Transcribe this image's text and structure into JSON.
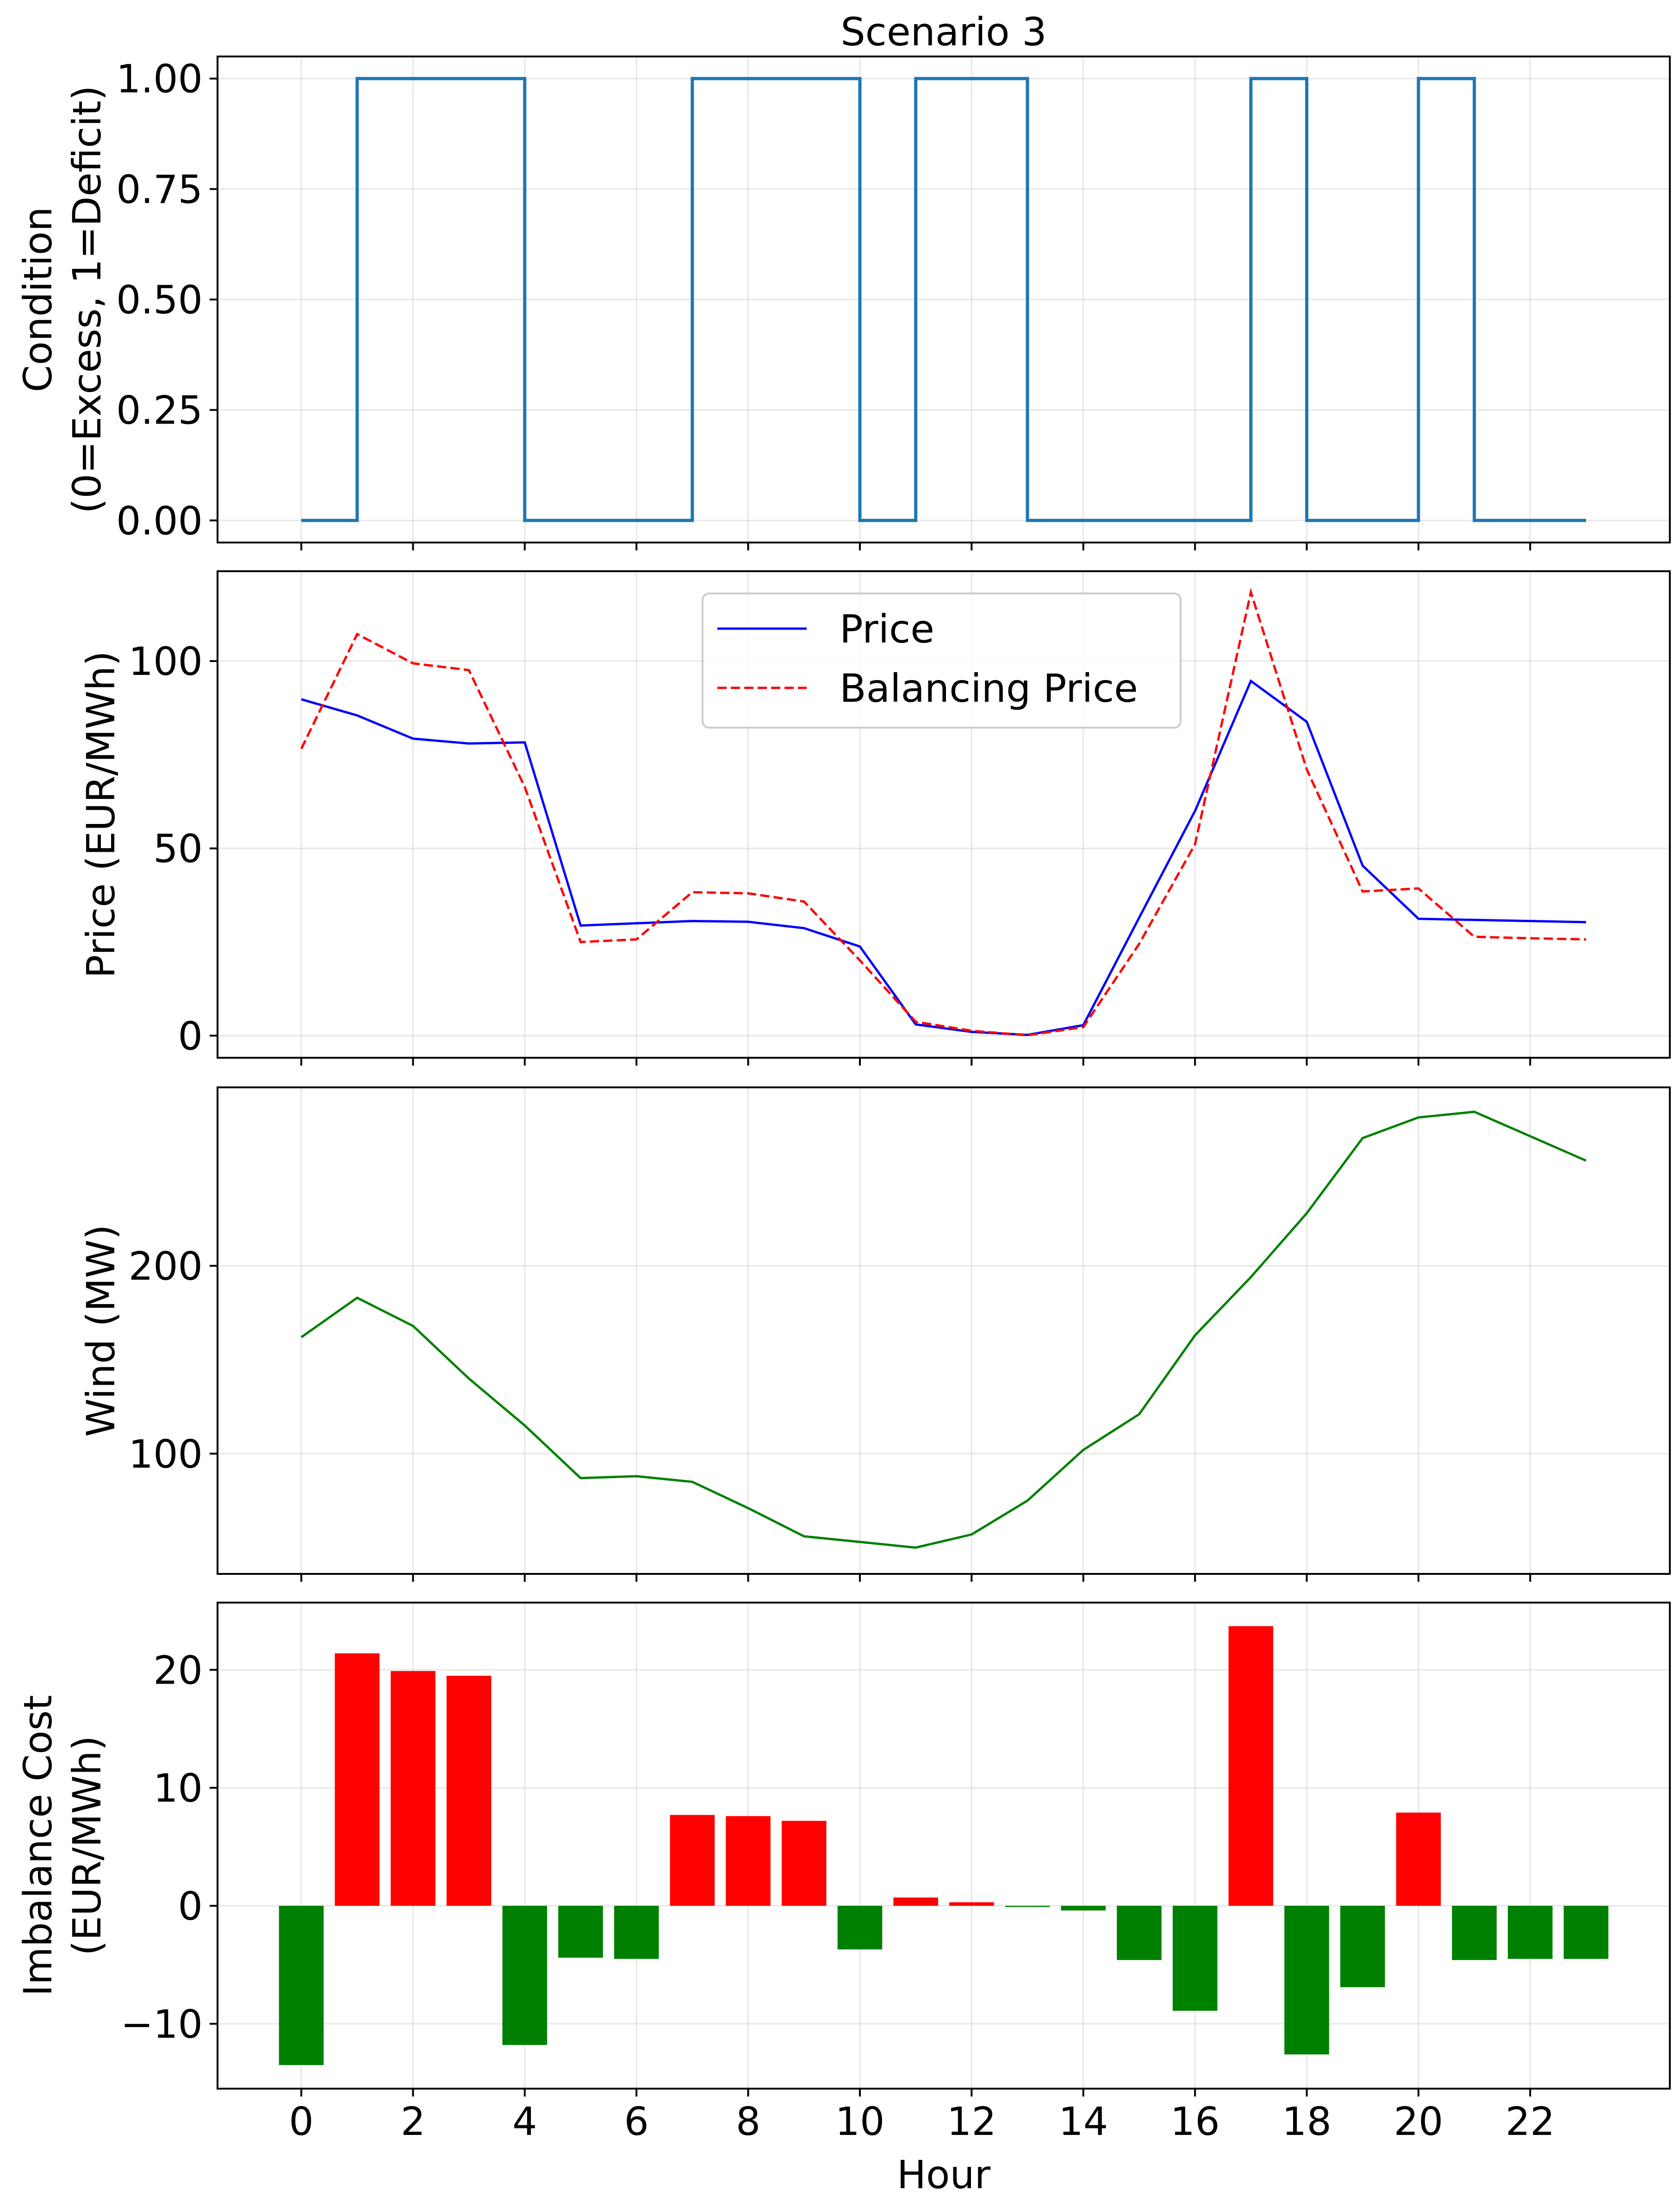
{
  "chart_data": [
    {
      "type": "line",
      "title": "Scenario 3",
      "xlabel": "",
      "ylabel": [
        "Condition",
        "(0=Excess, 1=Deficit)"
      ],
      "x": [
        0,
        1,
        2,
        3,
        4,
        5,
        6,
        7,
        8,
        9,
        10,
        11,
        12,
        13,
        14,
        15,
        16,
        17,
        18,
        19,
        20,
        21,
        22,
        23
      ],
      "xticks": [
        0,
        2,
        4,
        6,
        8,
        10,
        12,
        14,
        16,
        18,
        20,
        22
      ],
      "xlim": [
        -1.5,
        24.5
      ],
      "ylim": [
        -0.05,
        1.05
      ],
      "yticks": [
        0.0,
        0.25,
        0.5,
        0.75,
        1.0
      ],
      "ytick_labels": [
        "0.00",
        "0.25",
        "0.50",
        "0.75",
        "1.00"
      ],
      "grid": true,
      "series": [
        {
          "values": [
            0,
            1,
            1,
            1,
            0,
            0,
            0,
            1,
            1,
            1,
            0,
            1,
            1,
            0,
            0,
            0,
            0,
            1,
            0,
            0,
            1,
            0,
            0,
            0
          ],
          "color": "#1f77b4",
          "style": "solid",
          "step": "post"
        }
      ]
    },
    {
      "type": "line",
      "xlabel": "",
      "ylabel": [
        "Price (EUR/MWh)"
      ],
      "x": [
        0,
        1,
        2,
        3,
        4,
        5,
        6,
        7,
        8,
        9,
        10,
        11,
        12,
        13,
        14,
        15,
        16,
        17,
        18,
        19,
        20,
        21,
        22,
        23
      ],
      "xticks": [
        0,
        2,
        4,
        6,
        8,
        10,
        12,
        14,
        16,
        18,
        20,
        22
      ],
      "xlim": [
        -1.5,
        24.5
      ],
      "ylim": [
        -5.9,
        124.0
      ],
      "yticks": [
        0,
        50,
        100
      ],
      "ytick_labels": [
        "0",
        "50",
        "100"
      ],
      "grid": true,
      "legend_position": "top-center",
      "series": [
        {
          "name": "Price",
          "values": [
            89.8,
            85.5,
            79.3,
            78.0,
            78.3,
            29.4,
            30.0,
            30.6,
            30.4,
            28.7,
            23.8,
            3.0,
            1.0,
            0.2,
            2.8,
            31.5,
            60.0,
            94.7,
            83.8,
            45.4,
            31.2,
            30.9,
            30.6,
            30.3
          ],
          "color": "#0000ff",
          "style": "solid"
        },
        {
          "name": "Balancing Price",
          "values": [
            76.6,
            107.2,
            99.4,
            97.6,
            66.4,
            25.0,
            25.7,
            38.3,
            38.0,
            35.8,
            20.1,
            3.7,
            1.3,
            0.1,
            2.3,
            24.5,
            51.1,
            118.4,
            71.1,
            38.5,
            39.3,
            26.4,
            26.0,
            25.7
          ],
          "color": "#ff0000",
          "style": "dashed"
        }
      ]
    },
    {
      "type": "line",
      "xlabel": "",
      "ylabel": [
        "Wind (MW)"
      ],
      "x": [
        0,
        1,
        2,
        3,
        4,
        5,
        6,
        7,
        8,
        9,
        10,
        11,
        12,
        13,
        14,
        15,
        16,
        17,
        18,
        19,
        20,
        21,
        22,
        23
      ],
      "xticks": [
        0,
        2,
        4,
        6,
        8,
        10,
        12,
        14,
        16,
        18,
        20,
        22
      ],
      "xlim": [
        -1.5,
        24.5
      ],
      "ylim": [
        36.0,
        295.0
      ],
      "yticks": [
        100,
        200
      ],
      "ytick_labels": [
        "100",
        "200"
      ],
      "grid": true,
      "series": [
        {
          "values": [
            162,
            183,
            168,
            140,
            115,
            87,
            88,
            85,
            71,
            56,
            53,
            50,
            57,
            75,
            102,
            121,
            163,
            194,
            228,
            268,
            279,
            282,
            269,
            256
          ],
          "color": "#008000",
          "style": "solid"
        }
      ]
    },
    {
      "type": "bar",
      "xlabel": "Hour",
      "ylabel": [
        "Imbalance Cost",
        "(EUR/MWh)"
      ],
      "x": [
        0,
        1,
        2,
        3,
        4,
        5,
        6,
        7,
        8,
        9,
        10,
        11,
        12,
        13,
        14,
        15,
        16,
        17,
        18,
        19,
        20,
        21,
        22,
        23
      ],
      "xticks": [
        0,
        2,
        4,
        6,
        8,
        10,
        12,
        14,
        16,
        18,
        20,
        22
      ],
      "xtick_labels": [
        "0",
        "2",
        "4",
        "6",
        "8",
        "10",
        "12",
        "14",
        "16",
        "18",
        "20",
        "22"
      ],
      "xlim": [
        -1.5,
        24.5
      ],
      "ylim": [
        -15.5,
        25.7
      ],
      "yticks": [
        -10,
        0,
        10,
        20
      ],
      "ytick_labels": [
        "−10",
        "0",
        "10",
        "20"
      ],
      "grid": true,
      "positive_color": "#ff0000",
      "negative_color": "#008000",
      "values": [
        -13.5,
        21.4,
        19.9,
        19.5,
        -11.8,
        -4.4,
        -4.5,
        7.7,
        7.6,
        7.2,
        -3.7,
        0.7,
        0.3,
        -0.1,
        -0.4,
        -4.6,
        -8.9,
        23.7,
        -12.6,
        -6.9,
        7.9,
        -4.6,
        -4.5,
        -4.5
      ]
    }
  ]
}
